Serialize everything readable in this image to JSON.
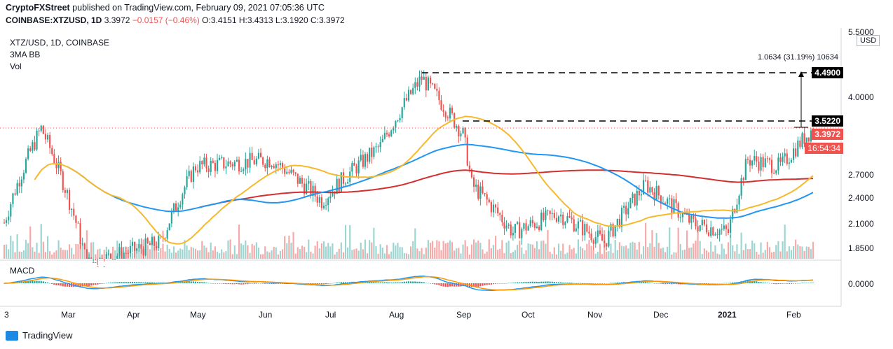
{
  "header": {
    "publisher": "CryptoFXStreet",
    "published_text": "published on TradingView.com, February 09, 2021 07:05:36 UTC",
    "symbol": "COINBASE:XTZUSD, 1D",
    "last": "3.3972",
    "change": "−0.0157 (−0.46%)",
    "o": "O:3.4151",
    "h": "H:3.4313",
    "l": "L:3.1920",
    "c": "C:3.3972"
  },
  "legend": {
    "line1": "XTZ/USD, 1D, COINBASE",
    "line2": "3MA BB",
    "line3": "Vol"
  },
  "macd_label": "MACD",
  "currency_box": "USD",
  "measure_label": "1.0634 (31.19%) 10634",
  "price_tags": {
    "resistance_high": "4.4900",
    "resistance_low": "3.5220",
    "current": "3.3972",
    "countdown": "16:54:34"
  },
  "colors": {
    "up": "#26a69a",
    "down": "#ef5350",
    "ma_fast": "#f7b92c",
    "ma_mid": "#2196f3",
    "ma_slow": "#d32f2f",
    "macd_line": "#2196f3",
    "signal_line": "#ff9800"
  },
  "footer": {
    "brand": "TradingView"
  },
  "chart_data": {
    "type": "candlestick",
    "price_axis_ticks": [
      "5.5000",
      "4.0000",
      "2.7000",
      "2.4000",
      "2.1000",
      "1.8500"
    ],
    "macd_axis_ticks": [
      "0.0000"
    ],
    "x_ticks": [
      "3",
      "Mar",
      "Apr",
      "May",
      "Jun",
      "Jul",
      "Aug",
      "Sep",
      "Oct",
      "Nov",
      "Dec",
      "2021",
      "Feb"
    ],
    "levels": [
      4.49,
      3.522
    ],
    "current_price": 3.3972,
    "price_path_approx": [
      {
        "date": "Feb 3 2020",
        "close": 2.1
      },
      {
        "date": "Feb 20 2020",
        "close": 3.4
      },
      {
        "date": "Mar 12 2020",
        "close": 1.7
      },
      {
        "date": "Apr 15 2020",
        "close": 1.9
      },
      {
        "date": "May 1 2020",
        "close": 2.8
      },
      {
        "date": "Jun 5 2020",
        "close": 2.9
      },
      {
        "date": "Jun 28 2020",
        "close": 2.35
      },
      {
        "date": "Jul 25 2020",
        "close": 3.1
      },
      {
        "date": "Aug 13 2020",
        "close": 4.4
      },
      {
        "date": "Sep 1 2020",
        "close": 3.3
      },
      {
        "date": "Sep 5 2020",
        "close": 2.55
      },
      {
        "date": "Sep 24 2020",
        "close": 2.0
      },
      {
        "date": "Oct 15 2020",
        "close": 2.2
      },
      {
        "date": "Nov 5 2020",
        "close": 1.9
      },
      {
        "date": "Nov 24 2020",
        "close": 2.55
      },
      {
        "date": "Dec 15 2020",
        "close": 2.1
      },
      {
        "date": "Jan 1 2021",
        "close": 2.0
      },
      {
        "date": "Jan 10 2021",
        "close": 2.9
      },
      {
        "date": "Jan 25 2021",
        "close": 2.8
      },
      {
        "date": "Feb 9 2021",
        "close": 3.3972
      }
    ]
  }
}
